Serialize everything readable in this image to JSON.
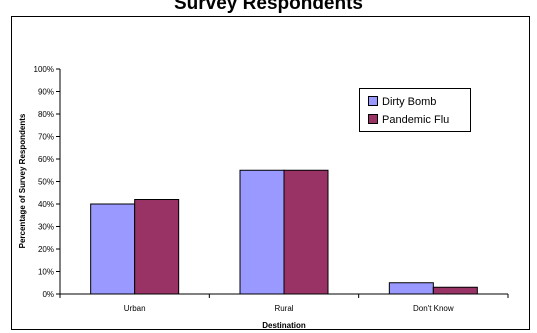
{
  "chart_data": {
    "type": "bar",
    "title": "Survey Respondents",
    "xlabel": "Destination",
    "ylabel": "Percentage of Survey Respondents",
    "categories": [
      "Urban",
      "Rural",
      "Don't Know"
    ],
    "series": [
      {
        "name": "Dirty Bomb",
        "values": [
          40,
          55,
          5
        ],
        "color": "#9999ff"
      },
      {
        "name": "Pandemic Flu",
        "values": [
          42,
          55,
          3
        ],
        "color": "#993366"
      }
    ],
    "ylim": [
      0,
      100
    ],
    "yticks": [
      "0%",
      "10%",
      "20%",
      "30%",
      "40%",
      "50%",
      "60%",
      "70%",
      "80%",
      "90%",
      "100%"
    ],
    "grid": false,
    "legend_position": "top-right"
  }
}
